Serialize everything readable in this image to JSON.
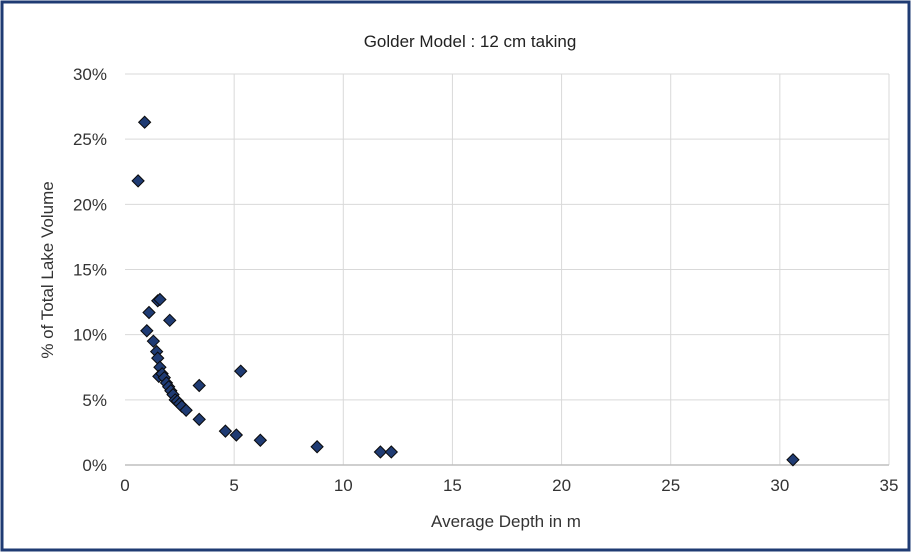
{
  "chart_data": {
    "type": "scatter",
    "title": "Golder Model : 12 cm taking",
    "xlabel": "Average Depth in m",
    "ylabel": "% of Total Lake Volume",
    "xlim": [
      0,
      35
    ],
    "ylim": [
      0,
      30
    ],
    "x_ticks": [
      "0",
      "5",
      "10",
      "15",
      "20",
      "25",
      "30",
      "35"
    ],
    "y_ticks": [
      "0%",
      "5%",
      "10%",
      "15%",
      "20%",
      "25%",
      "30%"
    ],
    "grid": true,
    "legend": "none",
    "marker": "diamond",
    "colors": {
      "marker_fill": "#1f3b73",
      "marker_stroke": "#0a0a0a",
      "border": "#1f3b73",
      "grid": "#d9d9d9"
    },
    "series": [
      {
        "points": [
          [
            0.6,
            21.8
          ],
          [
            0.9,
            26.3
          ],
          [
            1.0,
            10.3
          ],
          [
            1.1,
            11.7
          ],
          [
            1.3,
            9.5
          ],
          [
            1.5,
            12.6
          ],
          [
            1.6,
            12.7
          ],
          [
            1.45,
            8.7
          ],
          [
            1.5,
            8.2
          ],
          [
            1.6,
            7.5
          ],
          [
            1.55,
            6.8
          ],
          [
            1.7,
            7.0
          ],
          [
            1.8,
            6.7
          ],
          [
            1.9,
            6.3
          ],
          [
            2.0,
            6.0
          ],
          [
            2.05,
            11.1
          ],
          [
            2.1,
            5.7
          ],
          [
            2.2,
            5.4
          ],
          [
            2.3,
            5.0
          ],
          [
            2.4,
            4.9
          ],
          [
            2.5,
            4.7
          ],
          [
            2.6,
            4.5
          ],
          [
            2.8,
            4.2
          ],
          [
            3.4,
            6.1
          ],
          [
            3.4,
            3.5
          ],
          [
            5.3,
            7.2
          ],
          [
            4.6,
            2.6
          ],
          [
            5.1,
            2.3
          ],
          [
            6.2,
            1.9
          ],
          [
            8.8,
            1.4
          ],
          [
            11.7,
            1.0
          ],
          [
            12.2,
            1.0
          ],
          [
            30.6,
            0.4
          ]
        ]
      }
    ]
  }
}
